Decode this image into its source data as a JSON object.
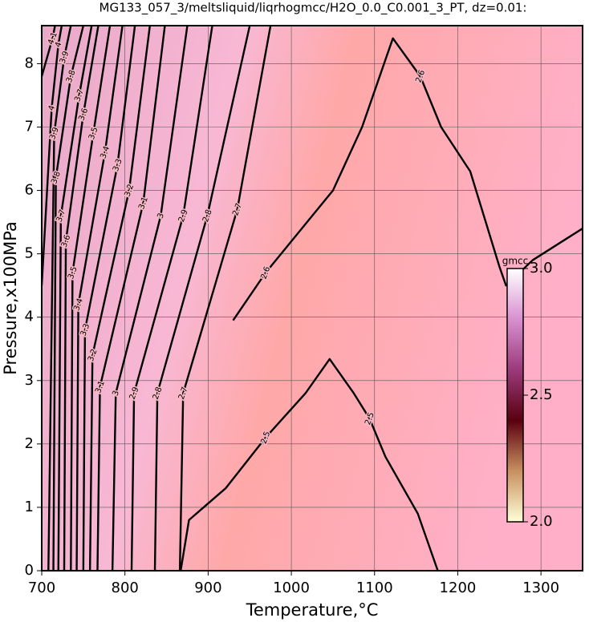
{
  "chart_data": {
    "type": "contour",
    "title": "MG133_057_3/meltsliquid/liqrhogmcc/H2O_0.0_C0.001_3_PT, dz=0.01:",
    "xlabel": "Temperature,°C",
    "ylabel": "Pressure,x100MPa",
    "xlim": [
      700,
      1350
    ],
    "ylim": [
      0,
      8.6
    ],
    "xticks": [
      700,
      800,
      900,
      1000,
      1100,
      1200,
      1300
    ],
    "yticks": [
      0,
      1,
      2,
      3,
      4,
      5,
      6,
      7,
      8
    ],
    "grid": true,
    "line_color": "#000000",
    "contours": [
      {
        "level": 2.5,
        "x": [
          867,
          877,
          921,
          969,
          1017,
          1046,
          1075,
          1094,
          1113,
          1152,
          1176
        ],
        "y": [
          0,
          0.8,
          1.3,
          2.1,
          2.8,
          3.34,
          2.8,
          2.4,
          1.8,
          0.9,
          0
        ]
      },
      {
        "level": 2.6,
        "x": [
          930,
          969,
          1050,
          1085,
          1122,
          1155,
          1180,
          1215,
          1250,
          1258,
          1290,
          1350
        ],
        "y": [
          3.95,
          4.7,
          6.0,
          7.0,
          8.4,
          7.8,
          7.0,
          6.3,
          4.8,
          4.5,
          4.9,
          5.4
        ]
      },
      {
        "level": 2.7,
        "x": [
          866,
          870,
          935,
          975
        ],
        "y": [
          0,
          2.8,
          5.7,
          8.6
        ]
      },
      {
        "level": 2.8,
        "x": [
          836,
          839,
          899,
          950
        ],
        "y": [
          0,
          2.8,
          5.6,
          8.6
        ]
      },
      {
        "level": 2.9,
        "x": [
          808,
          811,
          870,
          905
        ],
        "y": [
          0,
          2.8,
          5.6,
          8.6
        ]
      },
      {
        "level": 3,
        "x": [
          785,
          789,
          843,
          875
        ],
        "y": [
          0,
          2.8,
          5.6,
          8.6
        ]
      },
      {
        "level": 3.1,
        "x": [
          767,
          770,
          822,
          848
        ],
        "y": [
          0,
          2.9,
          5.8,
          8.6
        ]
      },
      {
        "level": 3.2,
        "x": [
          758,
          761,
          805,
          830
        ],
        "y": [
          0,
          3.4,
          6.0,
          8.6
        ]
      },
      {
        "level": 3.3,
        "x": [
          750,
          752,
          791,
          812
        ],
        "y": [
          0,
          3.8,
          6.4,
          8.6
        ]
      },
      {
        "level": 3.4,
        "x": [
          742,
          744,
          776,
          797
        ],
        "y": [
          0,
          4.2,
          6.6,
          8.6
        ]
      },
      {
        "level": 3.5,
        "x": [
          735,
          737,
          762,
          782
        ],
        "y": [
          0,
          4.7,
          6.9,
          8.6
        ]
      },
      {
        "level": 3.6,
        "x": [
          727,
          729,
          750,
          768
        ],
        "y": [
          0,
          5.2,
          7.2,
          8.6
        ]
      },
      {
        "level": 3.7,
        "x": [
          720,
          723,
          745,
          760
        ],
        "y": [
          0,
          5.6,
          7.5,
          8.6
        ]
      },
      {
        "level": 3.8,
        "x": [
          714,
          717,
          735,
          750
        ],
        "y": [
          0,
          6.2,
          7.8,
          8.6
        ]
      },
      {
        "level": 3.9,
        "x": [
          708,
          715,
          727,
          735
        ],
        "y": [
          0,
          6.9,
          8.1,
          8.6
        ]
      },
      {
        "level": 4,
        "x": [
          700,
          712,
          720,
          724
        ],
        "y": [
          4.5,
          7.3,
          8.3,
          8.6
        ]
      },
      {
        "level": 4.1,
        "x": [
          700,
          713,
          716
        ],
        "y": [
          7.8,
          8.4,
          8.6
        ]
      }
    ],
    "contour_labels": [
      {
        "level": 2.5,
        "x": 969,
        "y": 2.1
      },
      {
        "level": 2.5,
        "x": 1094,
        "y": 2.4
      },
      {
        "level": 2.6,
        "x": 969,
        "y": 4.7
      },
      {
        "level": 2.6,
        "x": 1155,
        "y": 7.8
      },
      {
        "level": 2.7,
        "x": 870,
        "y": 2.8
      },
      {
        "level": 2.7,
        "x": 935,
        "y": 5.7
      },
      {
        "level": 2.8,
        "x": 839,
        "y": 2.8
      },
      {
        "level": 2.8,
        "x": 899,
        "y": 5.6
      },
      {
        "level": 2.9,
        "x": 811,
        "y": 2.8
      },
      {
        "level": 2.9,
        "x": 870,
        "y": 5.6
      },
      {
        "level": 3,
        "x": 789,
        "y": 2.8
      },
      {
        "level": 3,
        "x": 843,
        "y": 5.6
      },
      {
        "level": 3.1,
        "x": 770,
        "y": 2.9
      },
      {
        "level": 3.1,
        "x": 822,
        "y": 5.8
      },
      {
        "level": 3.2,
        "x": 761,
        "y": 3.4
      },
      {
        "level": 3.2,
        "x": 805,
        "y": 6.0
      },
      {
        "level": 3.3,
        "x": 752,
        "y": 3.8
      },
      {
        "level": 3.3,
        "x": 791,
        "y": 6.4
      },
      {
        "level": 3.4,
        "x": 744,
        "y": 4.2
      },
      {
        "level": 3.4,
        "x": 776,
        "y": 6.6
      },
      {
        "level": 3.5,
        "x": 737,
        "y": 4.7
      },
      {
        "level": 3.5,
        "x": 762,
        "y": 6.9
      },
      {
        "level": 3.6,
        "x": 729,
        "y": 5.2
      },
      {
        "level": 3.6,
        "x": 750,
        "y": 7.2
      },
      {
        "level": 3.7,
        "x": 723,
        "y": 5.6
      },
      {
        "level": 3.7,
        "x": 745,
        "y": 7.5
      },
      {
        "level": 3.8,
        "x": 717,
        "y": 6.2
      },
      {
        "level": 3.8,
        "x": 735,
        "y": 7.8
      },
      {
        "level": 3.9,
        "x": 715,
        "y": 6.9
      },
      {
        "level": 3.9,
        "x": 727,
        "y": 8.1
      },
      {
        "level": 4,
        "x": 712,
        "y": 7.3
      },
      {
        "level": 4,
        "x": 720,
        "y": 8.3
      },
      {
        "level": 4.1,
        "x": 713,
        "y": 8.4
      }
    ],
    "colorbar": {
      "label": "gmcc",
      "lim": [
        2,
        3
      ],
      "ticks": [
        {
          "value": 3,
          "label": "3.0"
        },
        {
          "value": 2.5,
          "label": "2.5"
        },
        {
          "value": 2,
          "label": "2.0"
        }
      ],
      "colors": [
        "#ffffd8",
        "#c89060",
        "#5a0010",
        "#9a3a7a",
        "#d890d0",
        "#ffffff"
      ]
    }
  }
}
